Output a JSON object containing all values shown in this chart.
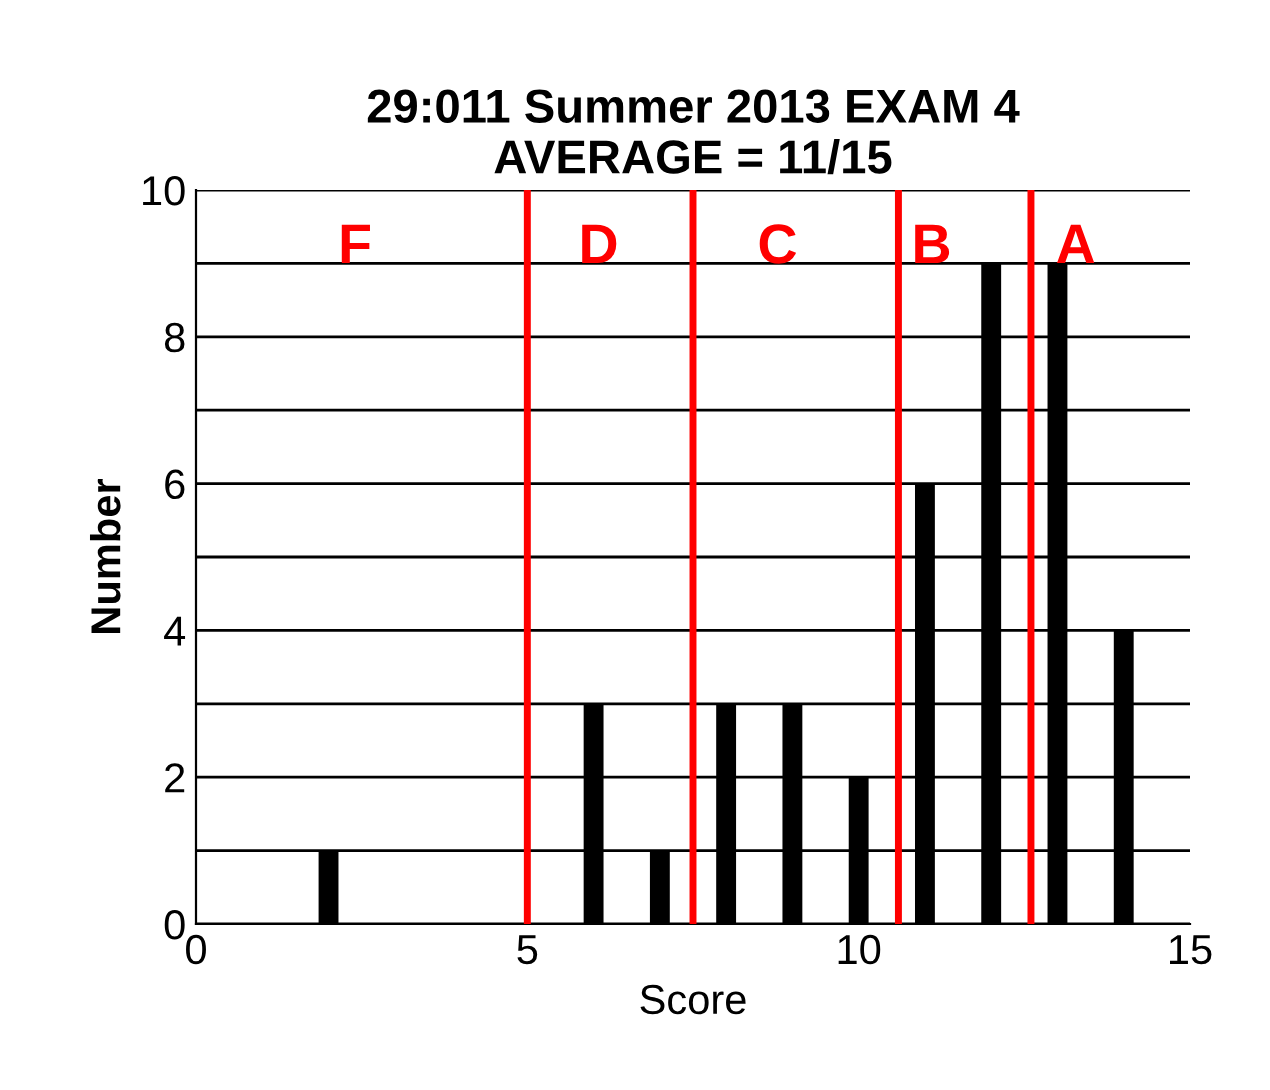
{
  "chart_data": {
    "type": "bar",
    "title": "29:011 Summer 2013 EXAM 4\nAVERAGE = 11/15",
    "xlabel": "Score",
    "ylabel": "Number",
    "x": [
      2,
      6,
      7,
      8,
      9,
      10,
      11,
      12,
      13,
      14
    ],
    "values": [
      1,
      3,
      1,
      3,
      3,
      2,
      6,
      9,
      9,
      4
    ],
    "color": "#000000",
    "xlim": [
      0,
      15
    ],
    "xticks": [
      0,
      5,
      10,
      15
    ],
    "ylim": [
      0,
      10
    ],
    "yticks": [
      0,
      {
        "value": 1,
        "label": null
      },
      2,
      {
        "value": 3,
        "label": null
      },
      4,
      {
        "value": 5,
        "label": null
      },
      6,
      {
        "value": 7,
        "label": null
      },
      8,
      {
        "value": 9,
        "label": null
      },
      10
    ],
    "grid": "y",
    "ref_lines": [
      {
        "axis": "x",
        "value": 5,
        "color": "#ff0000"
      },
      {
        "axis": "x",
        "value": 7.5,
        "color": "#ff0000"
      },
      {
        "axis": "x",
        "value": 10.6,
        "color": "#ff0000"
      },
      {
        "axis": "x",
        "value": 12.6,
        "color": "#ff0000"
      }
    ],
    "annotations": [
      "F",
      "D",
      "C",
      "B",
      "A"
    ]
  }
}
